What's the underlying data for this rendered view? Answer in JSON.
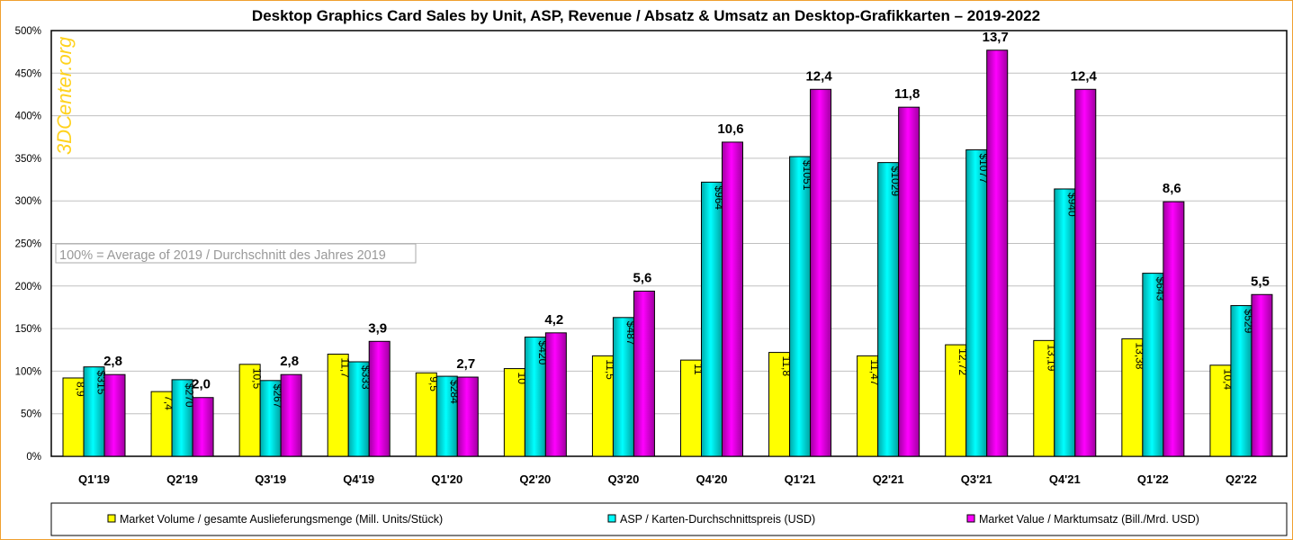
{
  "chart_data": {
    "type": "bar",
    "title": "Desktop Graphics Card Sales by Unit, ASP, Revenue  / Absatz & Umsatz an Desktop-Grafikkarten – 2019-2022",
    "watermark": "3DCenter.org",
    "note": "100% = Average of 2019 / Durchschnitt des Jahres 2019",
    "ylim": [
      0,
      500
    ],
    "yticks": [
      "0%",
      "50%",
      "100%",
      "150%",
      "200%",
      "250%",
      "300%",
      "350%",
      "400%",
      "450%",
      "500%"
    ],
    "grid": true,
    "legend_position": "bottom",
    "categories": [
      "Q1'19",
      "Q2'19",
      "Q3'19",
      "Q4'19",
      "Q1'20",
      "Q2'20",
      "Q3'20",
      "Q4'20",
      "Q1'21",
      "Q2'21",
      "Q3'21",
      "Q4'21",
      "Q1'22",
      "Q2'22"
    ],
    "series": [
      {
        "name": "Market Volume / gesamte Auslieferungsmenge (Mill. Units/Stück)",
        "color": "#ffff00",
        "values": [
          92,
          76,
          108,
          120,
          98,
          103,
          118,
          113,
          122,
          118,
          131,
          136,
          138,
          107
        ],
        "labels": [
          "8,9",
          "7,4",
          "10,5",
          "11,7",
          "9,5",
          "10",
          "11,5",
          "11",
          "11,8",
          "11,47",
          "12,72",
          "13,19",
          "13,38",
          "10,4"
        ]
      },
      {
        "name": "ASP / Karten-Durchschnittspreis (USD)",
        "color": "#00ffff",
        "values": [
          105,
          90,
          89,
          111,
          94,
          140,
          163,
          322,
          352,
          345,
          360,
          314,
          215,
          177
        ],
        "labels": [
          "$315",
          "$270",
          "$267",
          "$333",
          "$284",
          "$420",
          "$487",
          "$964",
          "$1051",
          "$1029",
          "$1077",
          "$940",
          "$643",
          "$529"
        ]
      },
      {
        "name": "Market Value / Marktumsatz (Bill./Mrd. USD)",
        "color": "#ff00ff",
        "values": [
          96,
          69,
          96,
          135,
          93,
          145,
          194,
          369,
          431,
          410,
          477,
          431,
          299,
          190
        ],
        "labels": [
          "2,8",
          "2,0",
          "2,8",
          "3,9",
          "2,7",
          "4,2",
          "5,6",
          "10,6",
          "12,4",
          "11,8",
          "13,7",
          "12,4",
          "8,6",
          "5,5"
        ]
      }
    ]
  }
}
